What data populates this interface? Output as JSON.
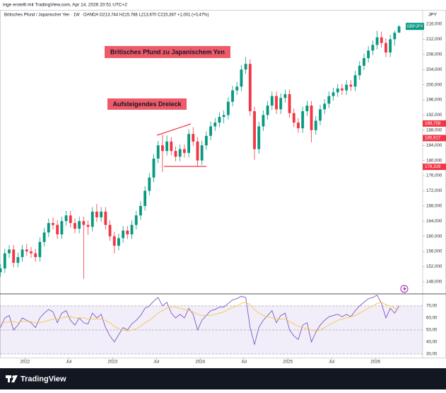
{
  "header": {
    "credit": "inge erstellt mit TradingView.com, Apr 14, 2026 20:51 UTC+2",
    "legend": "Britisches Pfund / Japanischer Yen · 1W · OANDA   O213,744  H215,788  L213,670  C215,387  +1,001 (+0,47%)"
  },
  "footer": {
    "brand": "TradingView"
  },
  "chart_data": {
    "type": "candlestick",
    "currency": "JPY",
    "symbol_tag": "GBPJPY",
    "annotations": [
      "Britisches Pfund zu Japanischem Yen",
      "Aufsteigendes Dreieck"
    ],
    "colors": {
      "up": "#089981",
      "down": "#f23645"
    },
    "xlim": [
      2021.715,
      2026.54
    ],
    "xticks": [
      2022,
      {
        "value": 2022.5,
        "label": "Jul"
      },
      2023,
      {
        "value": 2023.5,
        "label": "Jul"
      },
      2024,
      {
        "value": 2024.5,
        "label": "Jul"
      },
      2025,
      {
        "value": 2025.5,
        "label": "Jul"
      },
      2026
    ],
    "ylim": [
      144.8,
      219.55
    ],
    "yticks": [
      {
        "value": 148,
        "label": "148,000"
      },
      {
        "value": 152,
        "label": "152,000"
      },
      {
        "value": 156,
        "label": "156,000"
      },
      {
        "value": 160,
        "label": "160,000"
      },
      {
        "value": 164,
        "label": "164,000"
      },
      {
        "value": 168,
        "label": "168,000"
      },
      {
        "value": 172,
        "label": "172,000"
      },
      {
        "value": 176,
        "label": "176,000"
      },
      {
        "value": 180,
        "label": "180,000"
      },
      {
        "value": 184,
        "label": "184,000"
      },
      {
        "value": 188,
        "label": "188,000"
      },
      {
        "value": 192,
        "label": "192,000"
      },
      {
        "value": 196,
        "label": "196,000"
      },
      {
        "value": 200,
        "label": "200,000"
      },
      {
        "value": 204,
        "label": "204,000"
      },
      {
        "value": 208,
        "label": "208,000"
      },
      {
        "value": 212,
        "label": "212,000"
      },
      {
        "value": 216,
        "label": "216,000"
      }
    ],
    "price_labels": [
      {
        "value": 189.759,
        "label": "189,759"
      },
      {
        "value": 185.917,
        "label": "185,917"
      },
      {
        "value": 178.329,
        "label": "178,329"
      }
    ],
    "x": [
      2021.72,
      2021.77,
      2021.82,
      2021.87,
      2021.92,
      2021.97,
      2022.02,
      2022.07,
      2022.12,
      2022.17,
      2022.22,
      2022.27,
      2022.32,
      2022.37,
      2022.42,
      2022.47,
      2022.52,
      2022.57,
      2022.62,
      2022.67,
      2022.72,
      2022.77,
      2022.82,
      2022.87,
      2022.92,
      2022.97,
      2023.02,
      2023.07,
      2023.12,
      2023.17,
      2023.22,
      2023.27,
      2023.32,
      2023.37,
      2023.42,
      2023.47,
      2023.52,
      2023.57,
      2023.62,
      2023.67,
      2023.72,
      2023.77,
      2023.82,
      2023.87,
      2023.92,
      2023.97,
      2024.02,
      2024.07,
      2024.12,
      2024.17,
      2024.22,
      2024.27,
      2024.32,
      2024.37,
      2024.42,
      2024.47,
      2024.52,
      2024.57,
      2024.62,
      2024.67,
      2024.72,
      2024.77,
      2024.82,
      2024.87,
      2024.92,
      2024.97,
      2025.02,
      2025.07,
      2025.12,
      2025.17,
      2025.22,
      2025.27,
      2025.32,
      2025.37,
      2025.42,
      2025.47,
      2025.52,
      2025.57,
      2025.62,
      2025.67,
      2025.72,
      2025.77,
      2025.82,
      2025.87,
      2025.92,
      2025.97,
      2026.02,
      2026.07,
      2026.12,
      2026.17,
      2026.22,
      2026.27
    ],
    "candles": [
      [
        150.5,
        152.7,
        149.3,
        151.5
      ],
      [
        151.5,
        156.7,
        150.3,
        155.5
      ],
      [
        155.5,
        157.7,
        154.3,
        156.5
      ],
      [
        156.5,
        157.7,
        151.8,
        153
      ],
      [
        153,
        155.7,
        151.8,
        154.5
      ],
      [
        154.5,
        157.7,
        153.3,
        156.5
      ],
      [
        156.5,
        158,
        154.8,
        156
      ],
      [
        156,
        157.2,
        154.3,
        155.5
      ],
      [
        155.5,
        156.7,
        153.3,
        154.5
      ],
      [
        154.5,
        159.7,
        153.3,
        158.5
      ],
      [
        158.5,
        162.2,
        157.3,
        161
      ],
      [
        161,
        164.7,
        159.8,
        163.5
      ],
      [
        163.5,
        165,
        161.8,
        163
      ],
      [
        163,
        164.2,
        159.3,
        160.5
      ],
      [
        160.5,
        165.2,
        159.3,
        164
      ],
      [
        164,
        166.7,
        162.8,
        165.5
      ],
      [
        165.5,
        166.7,
        162.3,
        163.5
      ],
      [
        163.5,
        164.7,
        160.8,
        162
      ],
      [
        162,
        165.2,
        160.8,
        164
      ],
      [
        164,
        165.2,
        148.8,
        163
      ],
      [
        163,
        164.2,
        160.3,
        162.5
      ],
      [
        162.5,
        167.7,
        161.3,
        166.5
      ],
      [
        166.5,
        168.5,
        163.8,
        165
      ],
      [
        165,
        167.7,
        163.8,
        166.5
      ],
      [
        166.5,
        167.7,
        161.8,
        163
      ],
      [
        163,
        164.2,
        158.8,
        160
      ],
      [
        160,
        161.2,
        155.5,
        157.5
      ],
      [
        157.5,
        160.7,
        156.3,
        159.5
      ],
      [
        159.5,
        162.7,
        158.3,
        161.5
      ],
      [
        161.5,
        162.7,
        159.3,
        160.5
      ],
      [
        160.5,
        164.2,
        159.3,
        163
      ],
      [
        163,
        166.7,
        161.8,
        165.5
      ],
      [
        165.5,
        169.2,
        164.3,
        168
      ],
      [
        168,
        173.2,
        166.8,
        172
      ],
      [
        172,
        176.7,
        170.8,
        175.5
      ],
      [
        175.5,
        181.7,
        174.3,
        180.5
      ],
      [
        180.5,
        185.2,
        179.3,
        184
      ],
      [
        184,
        186.8,
        177,
        182.5
      ],
      [
        182.5,
        186.6,
        181.3,
        185
      ],
      [
        185,
        186.2,
        181.3,
        182.5
      ],
      [
        182.5,
        183.7,
        179.8,
        181
      ],
      [
        181,
        184.2,
        179.8,
        183
      ],
      [
        183,
        184.2,
        180.8,
        182
      ],
      [
        182,
        188.2,
        180.8,
        187
      ],
      [
        187,
        188.8,
        183.8,
        185
      ],
      [
        185,
        186.2,
        178.3,
        180
      ],
      [
        180,
        185.2,
        178.8,
        184
      ],
      [
        184,
        187.7,
        182.8,
        186.5
      ],
      [
        186.5,
        190.2,
        185.3,
        189
      ],
      [
        189,
        191.2,
        187.8,
        190
      ],
      [
        190,
        192.7,
        188.8,
        191.5
      ],
      [
        191.5,
        193.2,
        189.8,
        192
      ],
      [
        192,
        196.7,
        190.8,
        195.5
      ],
      [
        195.5,
        199.7,
        194.3,
        198.5
      ],
      [
        198.5,
        200.7,
        197.3,
        199.5
      ],
      [
        199.5,
        205.2,
        198.3,
        204
      ],
      [
        204,
        207.3,
        202.8,
        205.5
      ],
      [
        205.5,
        206.7,
        191.8,
        193
      ],
      [
        193,
        194.2,
        180.2,
        183
      ],
      [
        183,
        190.2,
        181.8,
        189
      ],
      [
        189,
        193.2,
        187.8,
        192
      ],
      [
        192,
        195.7,
        190.8,
        194.5
      ],
      [
        194.5,
        198.2,
        193.3,
        197
      ],
      [
        197,
        198.2,
        192.3,
        193.5
      ],
      [
        193.5,
        197.7,
        192.3,
        196.5
      ],
      [
        196.5,
        198.7,
        195.3,
        197.5
      ],
      [
        197.5,
        198.7,
        191.3,
        192.5
      ],
      [
        192.5,
        193.7,
        188.8,
        190
      ],
      [
        190,
        191.2,
        187.3,
        188.5
      ],
      [
        188.5,
        194.2,
        187.3,
        193
      ],
      [
        193,
        195.7,
        191.8,
        194.5
      ],
      [
        194.5,
        195.7,
        184.8,
        188
      ],
      [
        188,
        191.7,
        186.8,
        190.5
      ],
      [
        190.5,
        194.7,
        189.3,
        193.5
      ],
      [
        193.5,
        196.2,
        192.3,
        195
      ],
      [
        195,
        198.2,
        193.8,
        197
      ],
      [
        197,
        199.2,
        195.8,
        198
      ],
      [
        198,
        200.2,
        196.8,
        199
      ],
      [
        199,
        200.2,
        197.3,
        198.5
      ],
      [
        198.5,
        201.2,
        197.3,
        200
      ],
      [
        200,
        201.2,
        198.3,
        199.5
      ],
      [
        199.5,
        203.7,
        198.3,
        202.5
      ],
      [
        202.5,
        206.2,
        201.3,
        205
      ],
      [
        205,
        208.2,
        203.8,
        207
      ],
      [
        207,
        210.2,
        205.8,
        209
      ],
      [
        209,
        211.7,
        207.8,
        210.5
      ],
      [
        210.5,
        214.2,
        209.3,
        212.5
      ],
      [
        212.5,
        214,
        209.8,
        211
      ],
      [
        211,
        212.2,
        207.3,
        208.5
      ],
      [
        208.5,
        213.2,
        207.3,
        212
      ],
      [
        212,
        214.3,
        210.3,
        213.7
      ],
      [
        213.744,
        215.788,
        213.67,
        215.387
      ]
    ],
    "rsi": {
      "ylim": [
        27,
        80
      ],
      "yticks": [
        {
          "value": 30,
          "label": "30,00"
        },
        {
          "value": 40,
          "label": "40,00"
        },
        {
          "value": 50,
          "label": "50,00"
        },
        {
          "value": 60,
          "label": "60,00"
        },
        {
          "value": 70,
          "label": "70,00"
        }
      ],
      "band": [
        30,
        70
      ],
      "series": [
        {
          "color": "#7e57c2",
          "values": [
            52,
            60,
            62,
            50,
            54,
            60,
            58,
            56,
            52,
            60,
            64,
            67,
            65,
            56,
            64,
            66,
            58,
            54,
            60,
            56,
            55,
            64,
            60,
            63,
            52,
            45,
            40,
            46,
            52,
            50,
            55,
            58,
            62,
            68,
            70,
            74,
            77,
            70,
            73,
            64,
            60,
            63,
            60,
            68,
            63,
            50,
            58,
            62,
            66,
            67,
            69,
            69,
            72,
            75,
            76,
            78,
            77,
            52,
            38,
            52,
            58,
            62,
            66,
            56,
            62,
            64,
            50,
            45,
            42,
            54,
            56,
            40,
            48,
            54,
            58,
            61,
            62,
            63,
            61,
            63,
            61,
            66,
            70,
            73,
            76,
            77,
            79,
            72,
            60,
            68,
            64,
            70
          ]
        },
        {
          "color": "#f7c548",
          "values": [
            55,
            56,
            57,
            57,
            56,
            57,
            57,
            57,
            56,
            56,
            57,
            58,
            59,
            59,
            60,
            61,
            61,
            60,
            60,
            60,
            59,
            59,
            59,
            59,
            58,
            56,
            53,
            51,
            50,
            49,
            50,
            51,
            53,
            56,
            58,
            61,
            64,
            66,
            68,
            69,
            69,
            68,
            67,
            66,
            65,
            63,
            62,
            62,
            62,
            63,
            64,
            65,
            67,
            69,
            70,
            72,
            73,
            71,
            67,
            64,
            62,
            61,
            60,
            59,
            59,
            59,
            57,
            55,
            53,
            52,
            51,
            50,
            49,
            50,
            52,
            54,
            56,
            58,
            59,
            60,
            61,
            62,
            64,
            66,
            68,
            70,
            72,
            73,
            71,
            70,
            68,
            67
          ]
        }
      ]
    }
  }
}
